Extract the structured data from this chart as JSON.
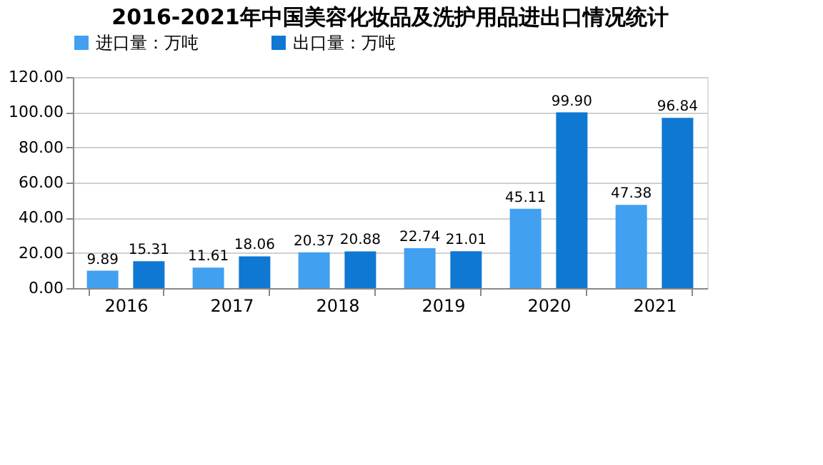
{
  "chart_data": {
    "type": "bar",
    "title": "2016-2021年中国美容化妆品及洗护用品进出口情况统计",
    "categories": [
      "2016",
      "2017",
      "2018",
      "2019",
      "2020",
      "2021"
    ],
    "series": [
      {
        "name": "进口量：万吨",
        "color": "#41a0f0",
        "values": [
          9.89,
          11.61,
          20.37,
          22.74,
          45.11,
          47.38
        ]
      },
      {
        "name": "出口量：万吨",
        "color": "#0f78d2",
        "values": [
          15.31,
          18.06,
          20.88,
          21.01,
          99.9,
          96.84
        ],
        "value_labels": [
          "15.31",
          "18.06",
          "20.88",
          "21.01",
          "99.90",
          "96.84"
        ]
      }
    ],
    "data_labels": true,
    "ylim": [
      0,
      120
    ],
    "yticks": [
      {
        "value": 0,
        "label": "0.00"
      },
      {
        "value": 20,
        "label": "20.00"
      },
      {
        "value": 40,
        "label": "40.00"
      },
      {
        "value": 60,
        "label": "60.00"
      },
      {
        "value": 80,
        "label": "80.00"
      },
      {
        "value": 100,
        "label": "100.00"
      },
      {
        "value": 120,
        "label": "120.00"
      }
    ],
    "grid": "y",
    "legend": "top"
  }
}
